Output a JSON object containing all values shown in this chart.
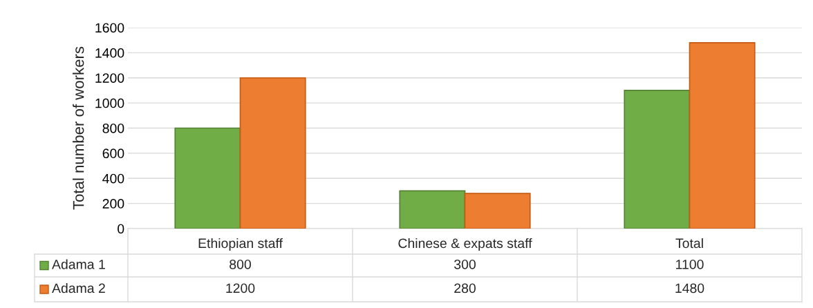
{
  "chart_data": {
    "type": "bar",
    "ylabel": "Total number of workers",
    "categories": [
      "Ethiopian staff",
      "Chinese & expats staff",
      "Total"
    ],
    "series": [
      {
        "name": "Adama 1",
        "color": "#70ad47",
        "values": [
          800,
          300,
          1100
        ]
      },
      {
        "name": "Adama 2",
        "color": "#ed7d31",
        "values": [
          1200,
          280,
          1480
        ]
      }
    ],
    "ylim": [
      0,
      1600
    ],
    "yticks": [
      0,
      200,
      400,
      600,
      800,
      1000,
      1200,
      1400,
      1600
    ],
    "grid": "y",
    "legend": "bottom left",
    "data_labels": true
  }
}
